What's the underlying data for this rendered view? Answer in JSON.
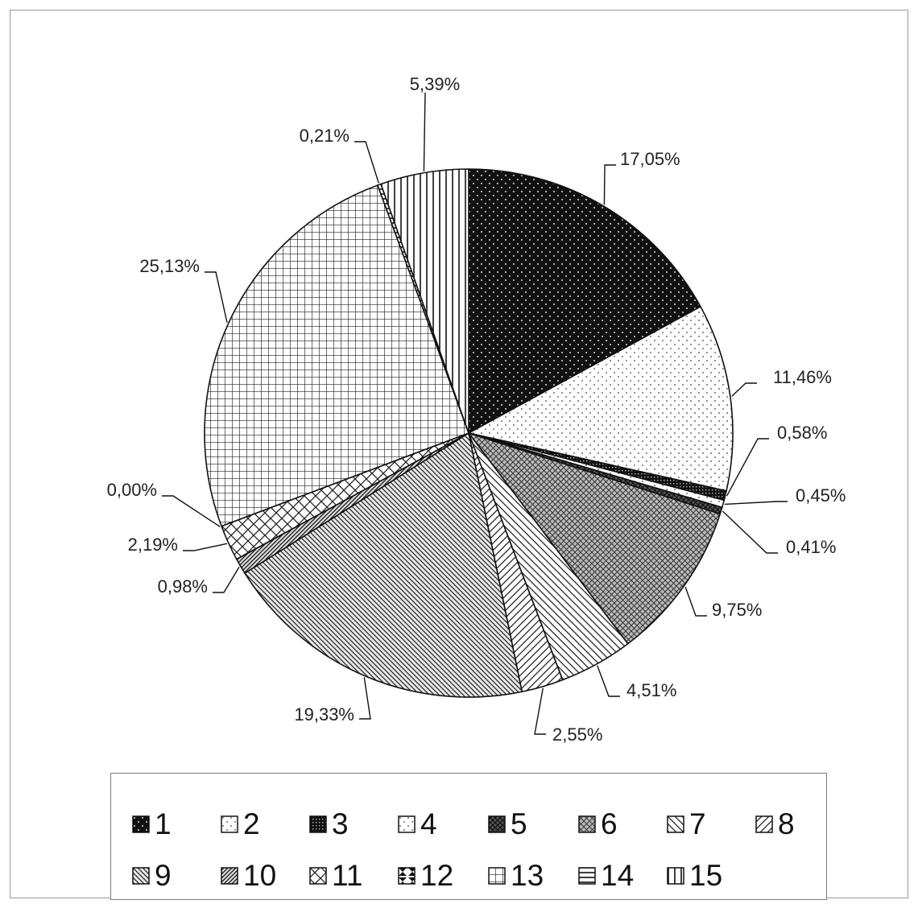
{
  "chart_data": {
    "type": "pie",
    "title": "",
    "series": [
      {
        "name": "1",
        "value": 17.05,
        "label": "17,05%",
        "pattern": "dots-dark"
      },
      {
        "name": "2",
        "value": 11.46,
        "label": "11,46%",
        "pattern": "dots-light"
      },
      {
        "name": "3",
        "value": 0.58,
        "label": "0,58%",
        "pattern": "dense-dark"
      },
      {
        "name": "4",
        "value": 0.45,
        "label": "0,45%",
        "pattern": "dots-light"
      },
      {
        "name": "5",
        "value": 0.41,
        "label": "0,41%",
        "pattern": "cross-dark"
      },
      {
        "name": "6",
        "value": 9.75,
        "label": "9,75%",
        "pattern": "cross-mid"
      },
      {
        "name": "7",
        "value": 4.51,
        "label": "4,51%",
        "pattern": "diag-back"
      },
      {
        "name": "8",
        "value": 2.55,
        "label": "2,55%",
        "pattern": "diag-fwd"
      },
      {
        "name": "9",
        "value": 19.33,
        "label": "19,33%",
        "pattern": "diag-back-dense"
      },
      {
        "name": "10",
        "value": 0.98,
        "label": "0,98%",
        "pattern": "diag-fwd-dense"
      },
      {
        "name": "11",
        "value": 2.19,
        "label": "2,19%",
        "pattern": "diamond"
      },
      {
        "name": "12",
        "value": 0.0,
        "label": "0,00%",
        "pattern": "hourglass"
      },
      {
        "name": "13",
        "value": 25.13,
        "label": "25,13%",
        "pattern": "grid"
      },
      {
        "name": "14",
        "value": 0.21,
        "label": "0,21%",
        "pattern": "horizontal"
      },
      {
        "name": "15",
        "value": 5.39,
        "label": "5,39%",
        "pattern": "vertical"
      }
    ],
    "legend_position": "bottom",
    "start": "12 o'clock, clockwise"
  },
  "colors": {
    "ink": "#111111",
    "paper": "#ffffff",
    "frame": "#9a9a9a"
  }
}
